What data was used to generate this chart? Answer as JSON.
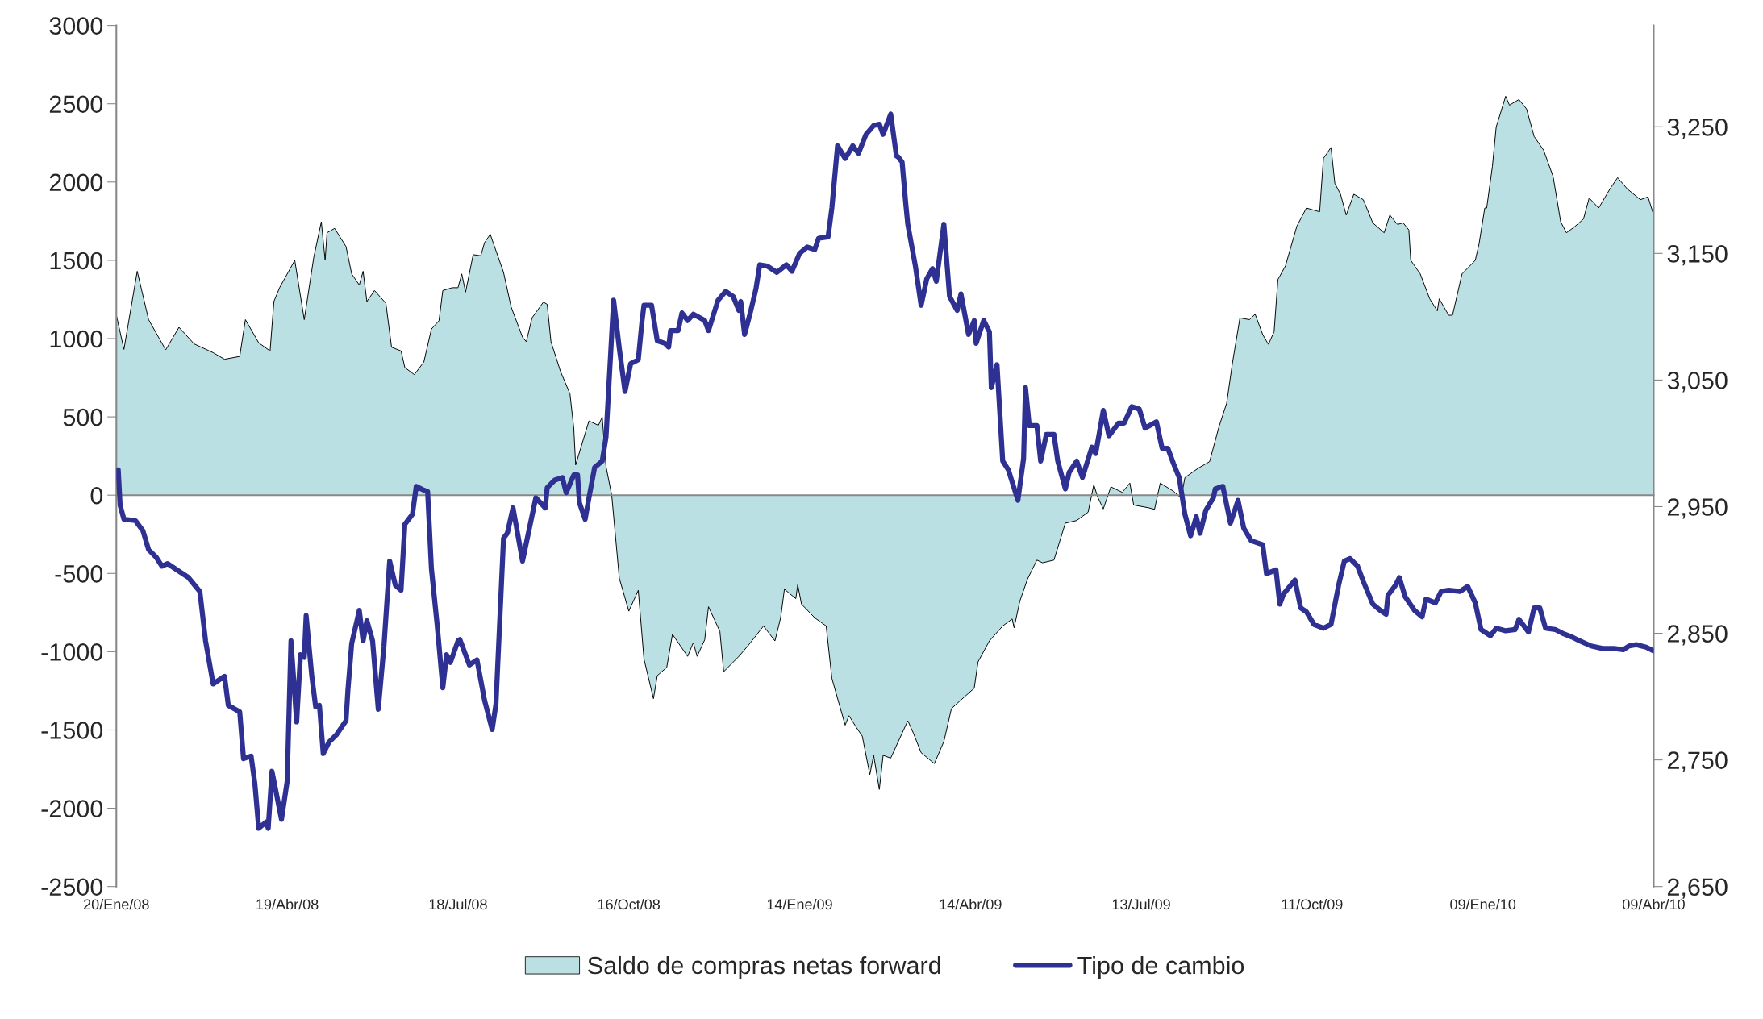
{
  "chart_data": {
    "type": "area",
    "xlim": [
      "2008-01-20",
      "2010-04-09"
    ],
    "xticks": [
      {
        "value": "2008-01-20",
        "label": "20/Ene/08"
      },
      {
        "value": "2008-04-19",
        "label": "19/Abr/08"
      },
      {
        "value": "2008-07-18",
        "label": "18/Jul/08"
      },
      {
        "value": "2008-10-16",
        "label": "16/Oct/08"
      },
      {
        "value": "2009-01-14",
        "label": "14/Ene/09"
      },
      {
        "value": "2009-04-14",
        "label": "14/Abr/09"
      },
      {
        "value": "2009-07-13",
        "label": "13/Jul/09"
      },
      {
        "value": "2009-10-11",
        "label": "11/Oct/09"
      },
      {
        "value": "2010-01-09",
        "label": "09/Ene/10"
      },
      {
        "value": "2010-04-09",
        "label": "09/Abr/10"
      }
    ],
    "ylim": [
      -2500,
      3000
    ],
    "yticks": [
      -2500,
      -2000,
      -1500,
      -1000,
      -500,
      0,
      500,
      1000,
      1500,
      2000,
      2500,
      3000
    ],
    "y2lim": [
      2650,
      3330
    ],
    "y2ticks": [
      {
        "value": 2650,
        "label": "2,650"
      },
      {
        "value": 2750,
        "label": "2,750"
      },
      {
        "value": 2850,
        "label": "2,850"
      },
      {
        "value": 2950,
        "label": "2,950"
      },
      {
        "value": 3050,
        "label": "3,050"
      },
      {
        "value": 3150,
        "label": "3,150"
      },
      {
        "value": 3250,
        "label": "3,250"
      }
    ],
    "legend": "bottom",
    "line_style": "solid",
    "series": [
      {
        "name": "Saldo de compras netas forward",
        "color": "#bae0e3",
        "x": [
          "2008-01-20",
          "2008-01-24",
          "2008-01-31",
          "2008-02-06",
          "2008-02-15",
          "2008-02-22",
          "2008-03-01",
          "2008-03-11",
          "2008-03-17",
          "2008-03-25",
          "2008-03-28",
          "2008-04-04",
          "2008-04-10",
          "2008-04-12",
          "2008-04-15",
          "2008-04-23",
          "2008-04-28",
          "2008-05-03",
          "2008-05-07",
          "2008-05-09",
          "2008-05-10",
          "2008-05-14",
          "2008-05-20",
          "2008-05-23",
          "2008-05-27",
          "2008-05-29",
          "2008-05-31",
          "2008-06-04",
          "2008-06-10",
          "2008-06-13",
          "2008-06-18",
          "2008-06-20",
          "2008-06-25",
          "2008-06-30",
          "2008-07-04",
          "2008-07-08",
          "2008-07-10",
          "2008-07-15",
          "2008-07-18",
          "2008-07-20",
          "2008-07-22",
          "2008-07-26",
          "2008-07-30",
          "2008-08-01",
          "2008-08-04",
          "2008-08-11",
          "2008-08-15",
          "2008-08-21",
          "2008-08-23",
          "2008-08-26",
          "2008-09-01",
          "2008-09-03",
          "2008-09-05",
          "2008-09-10",
          "2008-09-15",
          "2008-09-17",
          "2008-09-18",
          "2008-09-23",
          "2008-09-25",
          "2008-09-30",
          "2008-10-02",
          "2008-10-04",
          "2008-10-07",
          "2008-10-11",
          "2008-10-16",
          "2008-10-21",
          "2008-10-24",
          "2008-10-29",
          "2008-10-31",
          "2008-11-05",
          "2008-11-08",
          "2008-11-16",
          "2008-11-19",
          "2008-11-21",
          "2008-11-25",
          "2008-11-27",
          "2008-12-03",
          "2008-12-05",
          "2008-12-13",
          "2008-12-18",
          "2008-12-26",
          "2009-01-01",
          "2009-01-04",
          "2009-01-06",
          "2009-01-12",
          "2009-01-13",
          "2009-01-15",
          "2009-01-22",
          "2009-01-28",
          "2009-01-31",
          "2009-02-07",
          "2009-02-09",
          "2009-02-13",
          "2009-02-16",
          "2009-02-20",
          "2009-02-22",
          "2009-02-25",
          "2009-02-27",
          "2009-03-03",
          "2009-03-12",
          "2009-03-15",
          "2009-03-19",
          "2009-03-26",
          "2009-03-31",
          "2009-04-04",
          "2009-04-12",
          "2009-04-16",
          "2009-04-18",
          "2009-04-24",
          "2009-05-01",
          "2009-05-06",
          "2009-05-07",
          "2009-05-10",
          "2009-05-14",
          "2009-05-19",
          "2009-05-22",
          "2009-05-28",
          "2009-06-03",
          "2009-06-09",
          "2009-06-15",
          "2009-06-18",
          "2009-06-20",
          "2009-06-23",
          "2009-06-27",
          "2009-07-03",
          "2009-07-07",
          "2009-07-09",
          "2009-07-17",
          "2009-07-20",
          "2009-07-23",
          "2009-07-30",
          "2009-08-03",
          "2009-08-05",
          "2009-08-12",
          "2009-08-18",
          "2009-08-23",
          "2009-08-27",
          "2009-08-30",
          "2009-09-03",
          "2009-09-08",
          "2009-09-11",
          "2009-09-15",
          "2009-09-18",
          "2009-09-21",
          "2009-09-23",
          "2009-09-27",
          "2009-10-03",
          "2009-10-08",
          "2009-10-15",
          "2009-10-17",
          "2009-10-21",
          "2009-10-23",
          "2009-10-26",
          "2009-10-29",
          "2009-11-02",
          "2009-11-07",
          "2009-11-12",
          "2009-11-18",
          "2009-11-21",
          "2009-11-25",
          "2009-11-28",
          "2009-12-01",
          "2009-12-02",
          "2009-12-07",
          "2009-12-12",
          "2009-12-16",
          "2009-12-17",
          "2009-12-22",
          "2009-12-24",
          "2009-12-29",
          "2010-01-05",
          "2010-01-07",
          "2010-01-10",
          "2010-01-11",
          "2010-01-14",
          "2010-01-16",
          "2010-01-21",
          "2010-01-23",
          "2010-01-28",
          "2010-02-01",
          "2010-02-05",
          "2010-02-10",
          "2010-02-15",
          "2010-02-19",
          "2010-02-22",
          "2010-02-26",
          "2010-03-03",
          "2010-03-06",
          "2010-03-11",
          "2010-03-17",
          "2010-03-21",
          "2010-03-26",
          "2010-04-02",
          "2010-04-06",
          "2010-04-09"
        ],
        "values": [
          1150,
          931,
          1430,
          1121,
          928,
          1072,
          966,
          910,
          868,
          886,
          1121,
          973,
          921,
          1237,
          1325,
          1500,
          1121,
          1518,
          1746,
          1500,
          1676,
          1704,
          1588,
          1413,
          1342,
          1430,
          1237,
          1307,
          1226,
          945,
          921,
          815,
          770,
          850,
          1061,
          1114,
          1307,
          1325,
          1325,
          1413,
          1297,
          1536,
          1529,
          1613,
          1666,
          1423,
          1202,
          1009,
          980,
          1132,
          1233,
          1219,
          980,
          791,
          647,
          429,
          193,
          394,
          474,
          446,
          499,
          183,
          0,
          -531,
          -741,
          -608,
          -1047,
          -1300,
          -1153,
          -1100,
          -889,
          -1030,
          -942,
          -1030,
          -924,
          -713,
          -871,
          -1128,
          -1030,
          -959,
          -836,
          -931,
          -784,
          -601,
          -661,
          -573,
          -696,
          -784,
          -836,
          -1170,
          -1469,
          -1409,
          -1486,
          -1539,
          -1785,
          -1662,
          -1880,
          -1662,
          -1680,
          -1441,
          -1522,
          -1645,
          -1715,
          -1574,
          -1363,
          -1276,
          -1233,
          -1065,
          -931,
          -836,
          -791,
          -847,
          -678,
          -538,
          -415,
          -432,
          -415,
          -179,
          -162,
          -109,
          67,
          -11,
          -88,
          53,
          18,
          77,
          -63,
          -81,
          -91,
          77,
          25,
          -18,
          112,
          172,
          214,
          439,
          587,
          840,
          1132,
          1121,
          1156,
          1026,
          963,
          1044,
          1377,
          1465,
          1718,
          1834,
          1810,
          2151,
          2221,
          1992,
          1922,
          1789,
          1922,
          1887,
          1739,
          1676,
          1789,
          1729,
          1739,
          1694,
          1500,
          1413,
          1254,
          1177,
          1254,
          1149,
          1149,
          1413,
          1500,
          1606,
          1834,
          1834,
          2098,
          2351,
          2548,
          2491,
          2527,
          2467,
          2291,
          2203,
          2035,
          1746,
          1676,
          1711,
          1764,
          1898,
          1834,
          1957,
          2028,
          1957,
          1887,
          1905,
          1789
        ]
      },
      {
        "name": "Tipo de cambio",
        "type": "line",
        "axis": "y2",
        "color": "#2e3192",
        "x": [
          "2008-01-21",
          "2008-01-22",
          "2008-01-24",
          "2008-01-30",
          "2008-02-03",
          "2008-02-06",
          "2008-02-10",
          "2008-02-13",
          "2008-02-16",
          "2008-02-22",
          "2008-02-27",
          "2008-03-04",
          "2008-03-07",
          "2008-03-11",
          "2008-03-17",
          "2008-03-19",
          "2008-03-25",
          "2008-03-27",
          "2008-03-31",
          "2008-04-02",
          "2008-04-04",
          "2008-04-08",
          "2008-04-09",
          "2008-04-11",
          "2008-04-16",
          "2008-04-19",
          "2008-04-21",
          "2008-04-24",
          "2008-04-26",
          "2008-04-28",
          "2008-04-29",
          "2008-05-02",
          "2008-05-04",
          "2008-05-06",
          "2008-05-08",
          "2008-05-11",
          "2008-05-15",
          "2008-05-20",
          "2008-05-21",
          "2008-05-23",
          "2008-05-27",
          "2008-05-29",
          "2008-05-31",
          "2008-06-03",
          "2008-06-06",
          "2008-06-09",
          "2008-06-12",
          "2008-06-15",
          "2008-06-18",
          "2008-06-20",
          "2008-06-24",
          "2008-06-26",
          "2008-06-30",
          "2008-07-02",
          "2008-07-04",
          "2008-07-07",
          "2008-07-10",
          "2008-07-12",
          "2008-07-14",
          "2008-07-18",
          "2008-07-19",
          "2008-07-24",
          "2008-07-28",
          "2008-08-01",
          "2008-08-05",
          "2008-08-07",
          "2008-08-11",
          "2008-08-13",
          "2008-08-16",
          "2008-08-21",
          "2008-08-28",
          "2008-09-02",
          "2008-09-03",
          "2008-09-07",
          "2008-09-11",
          "2008-09-13",
          "2008-09-17",
          "2008-09-19",
          "2008-09-20",
          "2008-09-23",
          "2008-09-25",
          "2008-09-28",
          "2008-10-02",
          "2008-10-04",
          "2008-10-08",
          "2008-10-11",
          "2008-10-14",
          "2008-10-17",
          "2008-10-21",
          "2008-10-23",
          "2008-10-24",
          "2008-10-28",
          "2008-10-31",
          "2008-11-04",
          "2008-11-06",
          "2008-11-07",
          "2008-11-11",
          "2008-11-13",
          "2008-11-16",
          "2008-11-19",
          "2008-11-25",
          "2008-11-27",
          "2008-12-02",
          "2008-12-06",
          "2008-12-10",
          "2008-12-13",
          "2008-12-14",
          "2008-12-16",
          "2008-12-19",
          "2008-12-22",
          "2008-12-24",
          "2008-12-28",
          "2009-01-02",
          "2009-01-07",
          "2009-01-10",
          "2009-01-14",
          "2009-01-18",
          "2009-01-22",
          "2009-01-24",
          "2009-01-29",
          "2009-01-31",
          "2009-02-03",
          "2009-02-07",
          "2009-02-11",
          "2009-02-14",
          "2009-02-18",
          "2009-02-22",
          "2009-02-25",
          "2009-02-27",
          "2009-03-03",
          "2009-03-06",
          "2009-03-07",
          "2009-03-09",
          "2009-03-11",
          "2009-03-12",
          "2009-03-16",
          "2009-03-19",
          "2009-03-22",
          "2009-03-25",
          "2009-03-27",
          "2009-03-31",
          "2009-04-03",
          "2009-04-07",
          "2009-04-09",
          "2009-04-13",
          "2009-04-16",
          "2009-04-17",
          "2009-04-21",
          "2009-04-24",
          "2009-04-25",
          "2009-04-28",
          "2009-05-01",
          "2009-05-04",
          "2009-05-09",
          "2009-05-12",
          "2009-05-13",
          "2009-05-15",
          "2009-05-19",
          "2009-05-21",
          "2009-05-24",
          "2009-05-28",
          "2009-05-30",
          "2009-06-03",
          "2009-06-05",
          "2009-06-09",
          "2009-06-12",
          "2009-06-17",
          "2009-06-19",
          "2009-06-23",
          "2009-06-26",
          "2009-07-01",
          "2009-07-04",
          "2009-07-08",
          "2009-07-12",
          "2009-07-15",
          "2009-07-21",
          "2009-07-24",
          "2009-07-27",
          "2009-07-30",
          "2009-08-02",
          "2009-08-05",
          "2009-08-08",
          "2009-08-11",
          "2009-08-13",
          "2009-08-16",
          "2009-08-20",
          "2009-08-21",
          "2009-08-25",
          "2009-08-29",
          "2009-09-02",
          "2009-09-05",
          "2009-09-09",
          "2009-09-15",
          "2009-09-17",
          "2009-09-22",
          "2009-09-24",
          "2009-09-26",
          "2009-10-02",
          "2009-10-05",
          "2009-10-08",
          "2009-10-12",
          "2009-10-17",
          "2009-10-21",
          "2009-10-25",
          "2009-10-28",
          "2009-10-31",
          "2009-11-04",
          "2009-11-07",
          "2009-11-12",
          "2009-11-16",
          "2009-11-19",
          "2009-11-20",
          "2009-11-24",
          "2009-11-26",
          "2009-11-29",
          "2009-12-04",
          "2009-12-08",
          "2009-12-10",
          "2009-12-15",
          "2009-12-18",
          "2009-12-22",
          "2009-12-28",
          "2010-01-01",
          "2010-01-05",
          "2010-01-08",
          "2010-01-13",
          "2010-01-16",
          "2010-01-21",
          "2010-01-26",
          "2010-01-28",
          "2010-02-02",
          "2010-02-05",
          "2010-02-08",
          "2010-02-11",
          "2010-02-16",
          "2010-02-20",
          "2010-02-25",
          "2010-03-01",
          "2010-03-07",
          "2010-03-13",
          "2010-03-19",
          "2010-03-24",
          "2010-03-27",
          "2010-03-31",
          "2010-04-05",
          "2010-04-09"
        ],
        "values": [
          2979,
          2951,
          2940,
          2939,
          2931,
          2916,
          2910,
          2903,
          2905,
          2899,
          2894,
          2883,
          2844,
          2810,
          2816,
          2793,
          2788,
          2751,
          2753,
          2731,
          2696,
          2701,
          2696,
          2741,
          2703,
          2733,
          2844,
          2780,
          2833,
          2831,
          2864,
          2816,
          2792,
          2793,
          2755,
          2764,
          2770,
          2781,
          2805,
          2842,
          2868,
          2844,
          2860,
          2844,
          2790,
          2840,
          2907,
          2888,
          2884,
          2936,
          2944,
          2966,
          2963,
          2962,
          2901,
          2857,
          2807,
          2833,
          2827,
          2844,
          2845,
          2825,
          2829,
          2797,
          2774,
          2794,
          2925,
          2929,
          2949,
          2907,
          2957,
          2949,
          2965,
          2971,
          2973,
          2961,
          2975,
          2975,
          2953,
          2940,
          2957,
          2981,
          2986,
          3005,
          3113,
          3075,
          3041,
          3063,
          3066,
          3097,
          3109,
          3109,
          3081,
          3079,
          3076,
          3089,
          3089,
          3103,
          3097,
          3102,
          3097,
          3089,
          3113,
          3120,
          3116,
          3105,
          3112,
          3086,
          3103,
          3122,
          3141,
          3140,
          3135,
          3141,
          3136,
          3150,
          3155,
          3153,
          3162,
          3163,
          3186,
          3235,
          3225,
          3235,
          3229,
          3244,
          3251,
          3252,
          3244,
          3260,
          3227,
          3226,
          3222,
          3188,
          3173,
          3140,
          3109,
          3130,
          3138,
          3128,
          3173,
          3116,
          3105,
          3118,
          3086,
          3097,
          3079,
          3097,
          3088,
          3044,
          3062,
          2986,
          2979,
          2955,
          2988,
          3044,
          3014,
          3014,
          2986,
          3007,
          3007,
          2986,
          2964,
          2977,
          2986,
          2973,
          2997,
          2992,
          3026,
          3006,
          3016,
          3016,
          3029,
          3027,
          3012,
          3017,
          2996,
          2996,
          2984,
          2973,
          2944,
          2927,
          2942,
          2929,
          2947,
          2957,
          2964,
          2966,
          2937,
          2955,
          2933,
          2923,
          2920,
          2897,
          2900,
          2873,
          2881,
          2892,
          2870,
          2867,
          2857,
          2854,
          2857,
          2888,
          2907,
          2909,
          2903,
          2891,
          2873,
          2868,
          2865,
          2880,
          2888,
          2894,
          2879,
          2868,
          2863,
          2877,
          2874,
          2883,
          2884,
          2883,
          2887,
          2874,
          2853,
          2848,
          2854,
          2852,
          2853,
          2861,
          2851,
          2870,
          2870,
          2854,
          2853,
          2850,
          2847,
          2844,
          2840,
          2838,
          2838,
          2837,
          2840,
          2841,
          2839,
          2836
        ]
      }
    ]
  }
}
